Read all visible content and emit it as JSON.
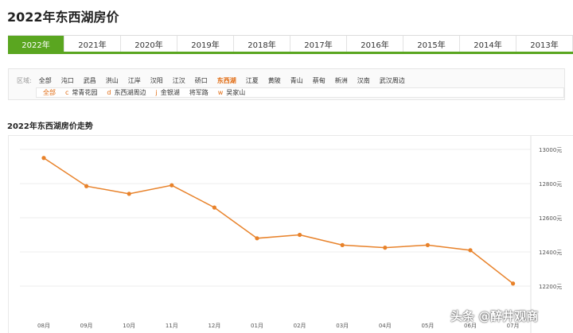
{
  "page_title": "2022年东西湖房价",
  "year_tabs": [
    "2022年",
    "2021年",
    "2020年",
    "2019年",
    "2018年",
    "2017年",
    "2016年",
    "2015年",
    "2014年",
    "2013年"
  ],
  "active_year_index": 0,
  "filter": {
    "district_label": "区域:",
    "districts": [
      "全部",
      "沌口",
      "武昌",
      "洪山",
      "江岸",
      "汉阳",
      "江汉",
      "硚口",
      "东西湖",
      "江夏",
      "黄陂",
      "青山",
      "蔡甸",
      "新洲",
      "汉南",
      "武汉周边"
    ],
    "active_district_index": 8,
    "sub_areas": [
      {
        "letter": "",
        "name": "全部"
      },
      {
        "letter": "c",
        "name": "常青花园"
      },
      {
        "letter": "d",
        "name": "东西湖周边"
      },
      {
        "letter": "j",
        "name": "金银湖"
      },
      {
        "letter": "",
        "name": "将军路"
      },
      {
        "letter": "w",
        "name": "吴家山"
      }
    ],
    "active_sub_index": 0
  },
  "chart_title": "2022年东西湖房价走势",
  "chart_data": {
    "type": "line",
    "title": "2022年东西湖房价走势",
    "categories": [
      "08月",
      "09月",
      "10月",
      "11月",
      "12月",
      "01月",
      "02月",
      "03月",
      "04月",
      "05月",
      "06月",
      "07月"
    ],
    "series": [
      {
        "values": [
          12950,
          12785,
          12740,
          12790,
          12660,
          12480,
          12500,
          12440,
          12425,
          12440,
          12410,
          12215
        ]
      }
    ],
    "y_ticks": [
      "13000元",
      "12800元",
      "12600元",
      "12400元",
      "12200元"
    ],
    "ylim": [
      12000,
      13000
    ],
    "grid": true,
    "line_color": "#e8822a"
  },
  "watermark": "头条 @醉井观商"
}
